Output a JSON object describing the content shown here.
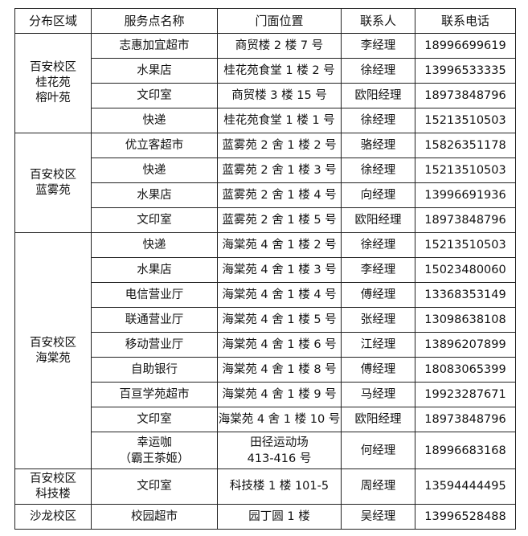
{
  "headers": [
    "分布区域",
    "服务点名称",
    "门面位置",
    "联系人",
    "联系电话"
  ],
  "groups": [
    {
      "region": [
        "百安校区",
        "桂花苑",
        "榕叶苑"
      ],
      "rows": [
        {
          "name": [
            "志惠加宜超市"
          ],
          "location": [
            "商贸楼 2 楼 7 号"
          ],
          "contact": "李经理",
          "phone": "18996699619"
        },
        {
          "name": [
            "水果店"
          ],
          "location": [
            "桂花苑食堂 1 楼 2 号"
          ],
          "contact": "徐经理",
          "phone": "13996533335"
        },
        {
          "name": [
            "文印室"
          ],
          "location": [
            "商贸楼 3 楼 15 号"
          ],
          "contact": "欧阳经理",
          "phone": "18973848796"
        },
        {
          "name": [
            "快递"
          ],
          "location": [
            "桂花苑食堂 1 楼 1 号"
          ],
          "contact": "徐经理",
          "phone": "15213510503"
        }
      ]
    },
    {
      "region": [
        "百安校区",
        "蓝雾苑"
      ],
      "rows": [
        {
          "name": [
            "优立客超市"
          ],
          "location": [
            "蓝雾苑 2 舍 1 楼 2 号"
          ],
          "contact": "骆经理",
          "phone": "15826351178"
        },
        {
          "name": [
            "快递"
          ],
          "location": [
            "蓝雾苑 2 舍 1 楼 3 号"
          ],
          "contact": "徐经理",
          "phone": "15213510503"
        },
        {
          "name": [
            "水果店"
          ],
          "location": [
            "蓝雾苑 2 舍 1 楼 4 号"
          ],
          "contact": "向经理",
          "phone": "13996691936"
        },
        {
          "name": [
            "文印室"
          ],
          "location": [
            "蓝雾苑 2 舍 1 楼 5 号"
          ],
          "contact": "欧阳经理",
          "phone": "18973848796"
        }
      ]
    },
    {
      "region": [
        "百安校区",
        "海棠苑"
      ],
      "rows": [
        {
          "name": [
            "快递"
          ],
          "location": [
            "海棠苑 4 舍 1 楼 2 号"
          ],
          "contact": "徐经理",
          "phone": "15213510503"
        },
        {
          "name": [
            "水果店"
          ],
          "location": [
            "海棠苑 4 舍 1 楼 3 号"
          ],
          "contact": "李经理",
          "phone": "15023480060"
        },
        {
          "name": [
            "电信营业厅"
          ],
          "location": [
            "海棠苑 4 舍 1 楼 4 号"
          ],
          "contact": "傅经理",
          "phone": "13368353149"
        },
        {
          "name": [
            "联通营业厅"
          ],
          "location": [
            "海棠苑 4 舍 1 楼 5 号"
          ],
          "contact": "张经理",
          "phone": "13098638108"
        },
        {
          "name": [
            "移动营业厅"
          ],
          "location": [
            "海棠苑 4 舍 1 楼 6 号"
          ],
          "contact": "江经理",
          "phone": "13896207899"
        },
        {
          "name": [
            "自助银行"
          ],
          "location": [
            "海棠苑 4 舍 1 楼 8 号"
          ],
          "contact": "傅经理",
          "phone": "18083065399"
        },
        {
          "name": [
            "百亘学苑超市"
          ],
          "location": [
            "海棠苑 4 舍 1 楼 9 号"
          ],
          "contact": "马经理",
          "phone": "19923287671"
        },
        {
          "name": [
            "文印室"
          ],
          "location": [
            "海棠苑 4 舍 1 楼 10 号"
          ],
          "contact": "欧阳经理",
          "phone": "18973848796"
        },
        {
          "name": [
            "幸运咖",
            "（霸王茶姬）"
          ],
          "location": [
            "田径运动场",
            "413-416 号"
          ],
          "contact": "何经理",
          "phone": "18996683168"
        }
      ]
    },
    {
      "region": [
        "百安校区",
        "科技楼"
      ],
      "rows": [
        {
          "name": [
            "文印室"
          ],
          "location": [
            "科技楼 1 楼 101-5"
          ],
          "contact": "周经理",
          "phone": "13594444495"
        }
      ]
    },
    {
      "region": [
        "沙龙校区"
      ],
      "rows": [
        {
          "name": [
            "校园超市"
          ],
          "location": [
            "园丁圆 1 楼"
          ],
          "contact": "吴经理",
          "phone": "13996528488"
        }
      ]
    }
  ]
}
